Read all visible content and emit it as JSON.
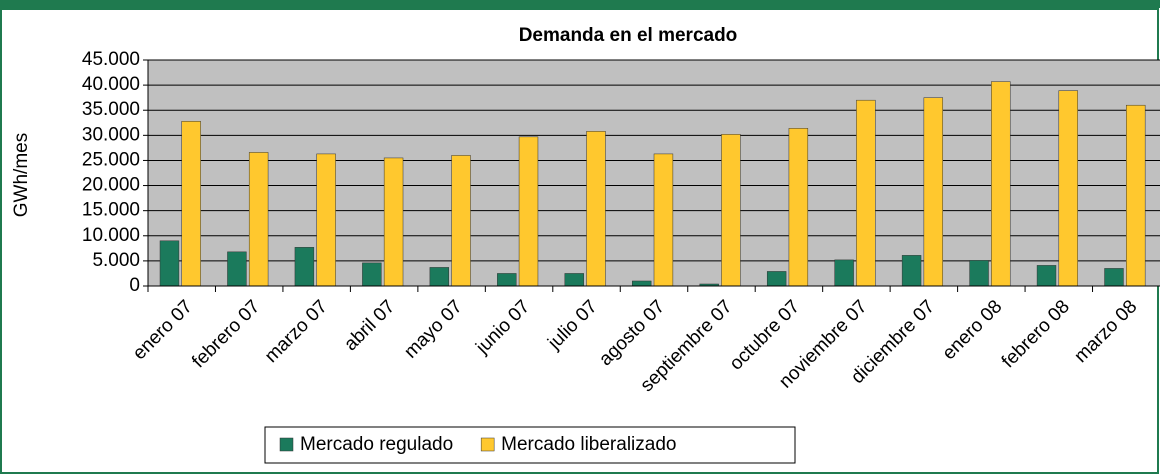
{
  "chart_data": {
    "type": "bar",
    "title": "Demanda en el mercado",
    "y_label": "GWh/mes",
    "categories": [
      "enero 07",
      "febrero 07",
      "marzo 07",
      "abril 07",
      "mayo 07",
      "junio 07",
      "julio 07",
      "agosto 07",
      "septiembre 07",
      "octubre 07",
      "noviembre 07",
      "diciembre 07",
      "enero 08",
      "febrero 08",
      "marzo 08"
    ],
    "series": [
      {
        "name": "Mercado regulado",
        "color": "#1b7a5c",
        "values": [
          9000,
          6800,
          7700,
          4600,
          3700,
          2500,
          2500,
          1000,
          400,
          2900,
          5200,
          6100,
          5100,
          4100,
          3500
        ]
      },
      {
        "name": "Mercado liberalizado",
        "color": "#ffc82e",
        "values": [
          32800,
          26600,
          26300,
          25500,
          26000,
          29700,
          30800,
          26300,
          30200,
          31400,
          37000,
          37500,
          40700,
          38900,
          36000
        ]
      }
    ],
    "ylim": [
      0,
      45000
    ],
    "yticks": [
      0,
      {
        "value": 5000,
        "label": "5.000"
      },
      {
        "value": 10000,
        "label": "10.000"
      },
      {
        "value": 15000,
        "label": "15.000"
      },
      {
        "value": 20000,
        "label": "20.000"
      },
      {
        "value": 25000,
        "label": "25.000"
      },
      {
        "value": 30000,
        "label": "30.000"
      },
      {
        "value": 35000,
        "label": "35.000"
      },
      {
        "value": 40000,
        "label": "40.000"
      },
      {
        "value": 45000,
        "label": "45.000"
      }
    ],
    "grid": true,
    "legend": "bottom"
  }
}
